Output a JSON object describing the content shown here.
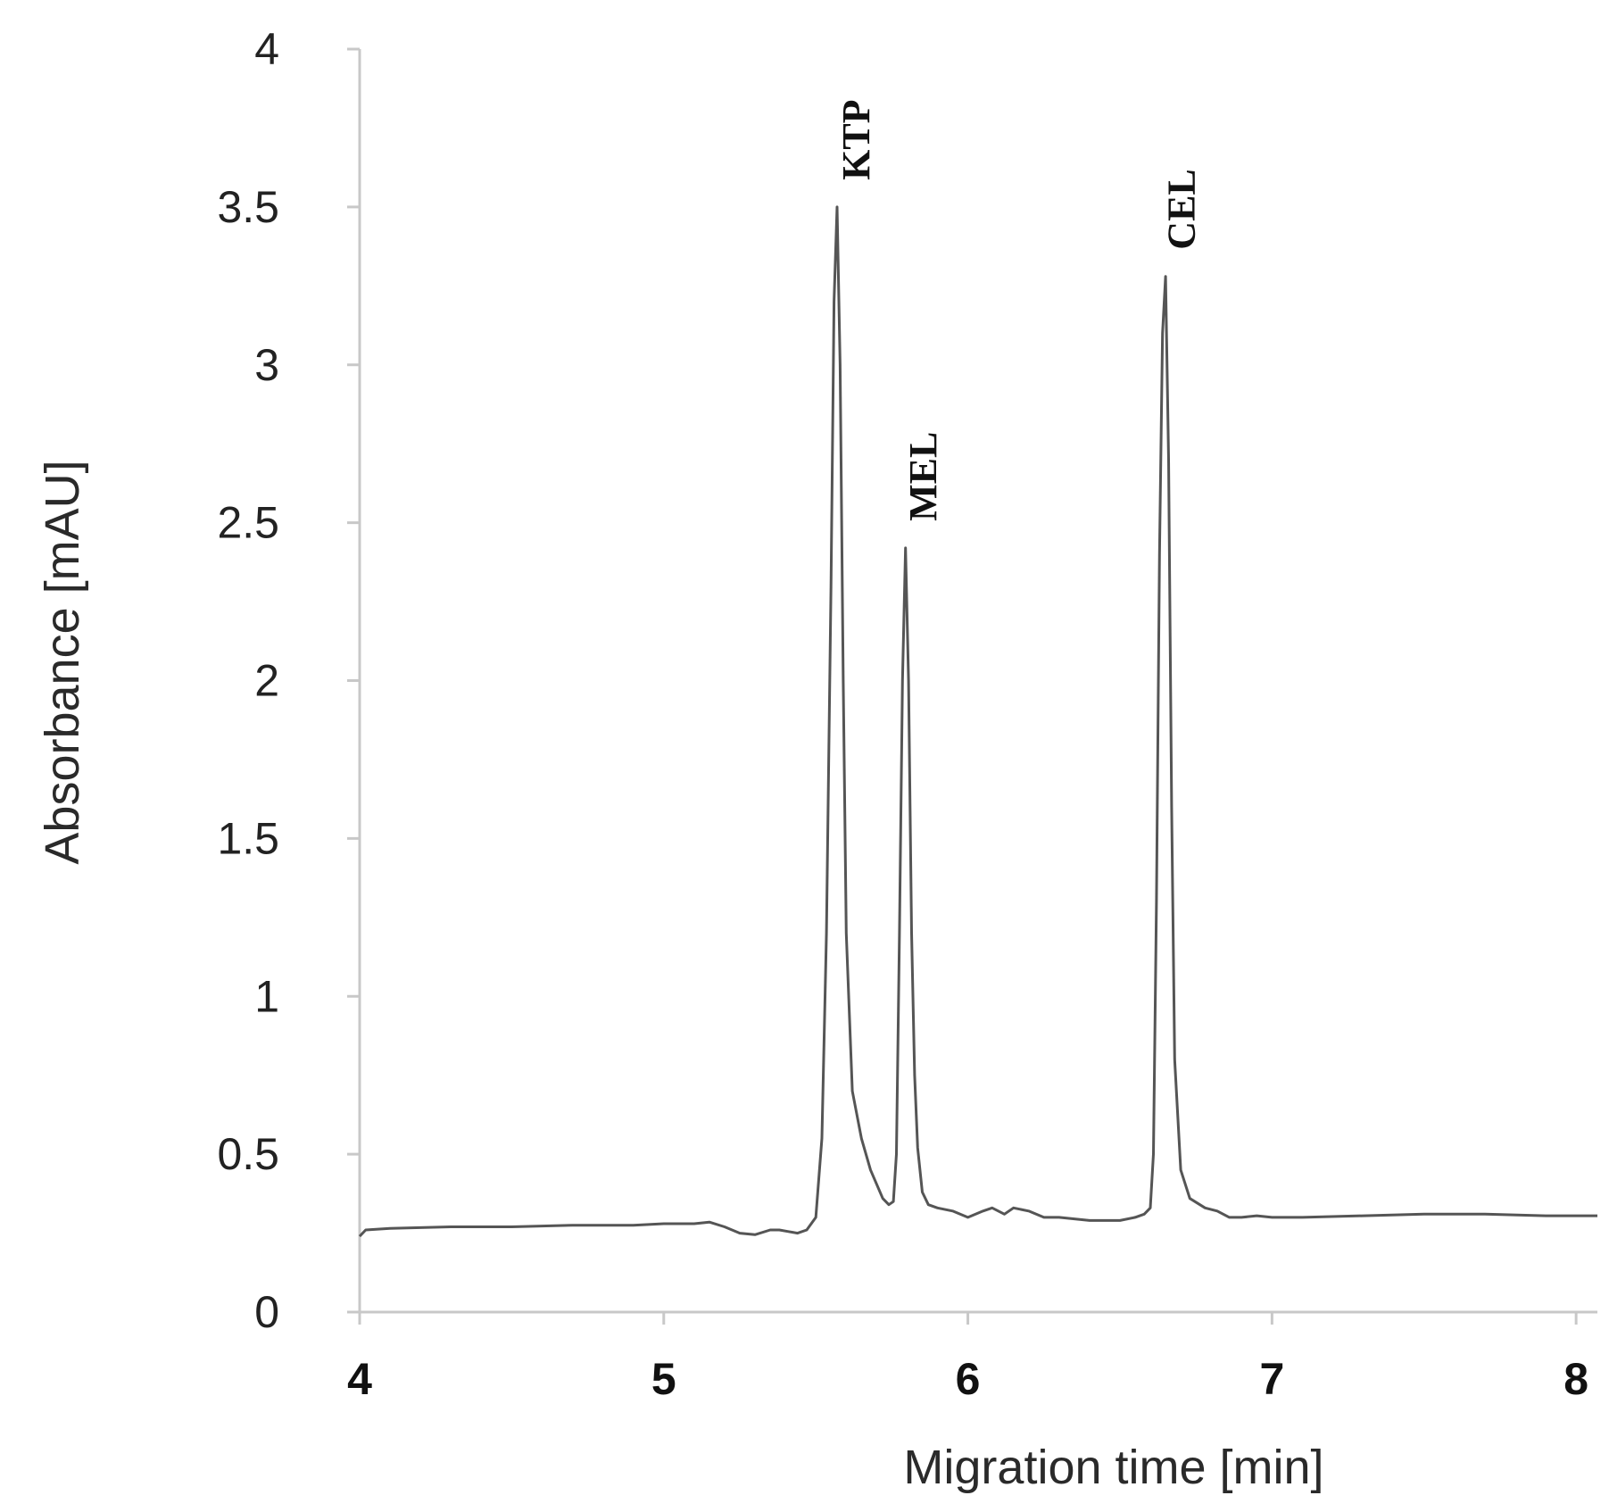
{
  "chart_data": {
    "type": "line",
    "title": "",
    "xlabel": "Migration time [min]",
    "ylabel": "Absorbance [mAU]",
    "xlim": [
      4,
      8.07
    ],
    "ylim": [
      0,
      4
    ],
    "x_ticks": [
      "4",
      "5",
      "6",
      "7",
      "8"
    ],
    "y_ticks": [
      "0",
      "0.5",
      "1",
      "1.5",
      "2",
      "2.5",
      "3",
      "3.5",
      "4"
    ],
    "grid": false,
    "legend": "none",
    "line_color": "#555555",
    "axis_color": "#c8c8c8",
    "annotations": [
      {
        "text": "KTP",
        "x": 5.57,
        "y": 3.5
      },
      {
        "text": "MEL",
        "x": 5.79,
        "y": 2.42
      },
      {
        "text": "CEL",
        "x": 6.64,
        "y": 3.28
      }
    ],
    "series": [
      {
        "x": [
          4.0,
          4.02,
          4.1,
          4.3,
          4.5,
          4.7,
          4.9,
          5.0,
          5.1,
          5.15,
          5.2,
          5.25,
          5.3,
          5.35,
          5.38,
          5.41,
          5.44,
          5.47,
          5.5,
          5.52,
          5.535,
          5.55,
          5.56,
          5.57,
          5.58,
          5.59,
          5.6,
          5.62,
          5.65,
          5.68,
          5.72,
          5.74,
          5.755,
          5.765,
          5.775,
          5.785,
          5.795,
          5.805,
          5.815,
          5.825,
          5.835,
          5.85,
          5.87,
          5.9,
          5.95,
          6.0,
          6.05,
          6.08,
          6.12,
          6.15,
          6.2,
          6.25,
          6.3,
          6.4,
          6.5,
          6.55,
          6.58,
          6.6,
          6.61,
          6.62,
          6.63,
          6.64,
          6.65,
          6.66,
          6.67,
          6.68,
          6.7,
          6.73,
          6.78,
          6.82,
          6.86,
          6.9,
          6.95,
          7.0,
          7.1,
          7.3,
          7.5,
          7.7,
          7.9,
          8.07
        ],
        "y": [
          0.24,
          0.26,
          0.265,
          0.27,
          0.27,
          0.275,
          0.275,
          0.28,
          0.28,
          0.285,
          0.27,
          0.25,
          0.245,
          0.26,
          0.26,
          0.255,
          0.25,
          0.26,
          0.3,
          0.55,
          1.2,
          2.3,
          3.2,
          3.5,
          3.0,
          2.0,
          1.2,
          0.7,
          0.55,
          0.45,
          0.36,
          0.34,
          0.35,
          0.5,
          1.2,
          2.0,
          2.42,
          2.0,
          1.2,
          0.75,
          0.52,
          0.38,
          0.34,
          0.33,
          0.32,
          0.3,
          0.32,
          0.33,
          0.31,
          0.33,
          0.32,
          0.3,
          0.3,
          0.29,
          0.29,
          0.3,
          0.31,
          0.33,
          0.5,
          1.3,
          2.4,
          3.1,
          3.28,
          2.7,
          1.6,
          0.8,
          0.45,
          0.36,
          0.33,
          0.32,
          0.3,
          0.3,
          0.305,
          0.3,
          0.3,
          0.305,
          0.31,
          0.31,
          0.305,
          0.305
        ]
      }
    ]
  }
}
